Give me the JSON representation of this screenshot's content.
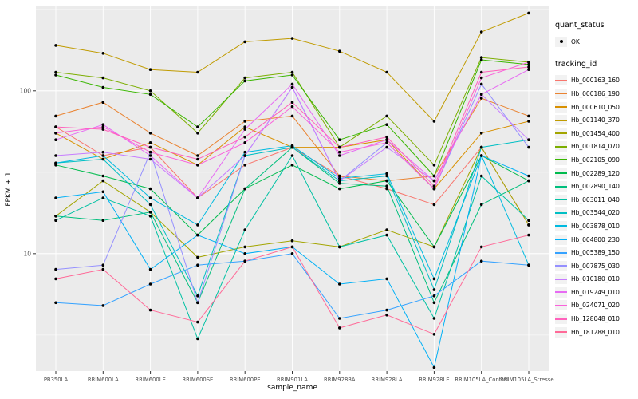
{
  "figure": {
    "background": "#FFFFFF",
    "panel_background": "#EBEBEB",
    "grid_color": "#FFFFFF",
    "tick_color": "#333333",
    "tick_label_color": "#4D4D4D"
  },
  "legend": {
    "quant_status_title": "quant_status",
    "quant_status_items": [
      {
        "label": "OK",
        "symbol": "point"
      }
    ],
    "tracking_id_title": "tracking_id"
  },
  "chart_data": {
    "type": "line",
    "title": "",
    "xlabel": "sample_name",
    "ylabel": "FPKM + 1",
    "y_scale": "log10",
    "ylim": [
      1.9,
      330
    ],
    "y_ticks": [
      10,
      100
    ],
    "y_minor_ticks": [
      3.162,
      31.62,
      316
    ],
    "grid": true,
    "legend_position": "right",
    "point_color": "#000000",
    "categories": [
      "PB350LA",
      "RRIM600LA",
      "RRIM600LE",
      "RRIM600SE",
      "RRIM600PE",
      "RRIM901LA",
      "RRIM928BA",
      "RRIM928LA",
      "RRIM928LE",
      "RRIM105LA_Control",
      "RRIM105LA_Stressed"
    ],
    "series": [
      {
        "name": "Hb_000163_160",
        "color": "#F8766D",
        "values": [
          60,
          40,
          45,
          22,
          35,
          45,
          30,
          25,
          20,
          45,
          15
        ]
      },
      {
        "name": "Hb_000186_190",
        "color": "#EA8331",
        "values": [
          70,
          85,
          55,
          40,
          65,
          70,
          30,
          28,
          30,
          90,
          70
        ]
      },
      {
        "name": "Hb_000610_050",
        "color": "#D89000",
        "values": [
          55,
          38,
          48,
          35,
          60,
          45,
          45,
          50,
          25,
          55,
          65
        ]
      },
      {
        "name": "Hb_001140_370",
        "color": "#C09B00",
        "values": [
          190,
          170,
          135,
          130,
          200,
          210,
          175,
          130,
          65,
          230,
          300
        ]
      },
      {
        "name": "Hb_001454_400",
        "color": "#A3A500",
        "values": [
          17,
          28,
          18,
          9.5,
          11,
          12,
          11,
          14,
          11,
          45,
          15
        ]
      },
      {
        "name": "Hb_001814_070",
        "color": "#7CAE00",
        "values": [
          130,
          120,
          100,
          55,
          120,
          130,
          45,
          70,
          35,
          160,
          150
        ]
      },
      {
        "name": "Hb_002105_090",
        "color": "#39B600",
        "values": [
          125,
          105,
          95,
          60,
          115,
          125,
          50,
          62,
          30,
          155,
          145
        ]
      },
      {
        "name": "Hb_002289_120",
        "color": "#00BB4E",
        "values": [
          35,
          30,
          25,
          13,
          25,
          35,
          25,
          28,
          11,
          40,
          28
        ]
      },
      {
        "name": "Hb_002890_140",
        "color": "#00BF7D",
        "values": [
          17,
          16,
          18,
          5,
          25,
          45,
          27,
          26,
          5,
          20,
          28
        ]
      },
      {
        "name": "Hb_003011_040",
        "color": "#00C1A3",
        "values": [
          16,
          22,
          17,
          3,
          14,
          40,
          11,
          13,
          4,
          30,
          16
        ]
      },
      {
        "name": "Hb_003544_020",
        "color": "#00BFC4",
        "values": [
          36,
          38,
          20,
          5.5,
          40,
          45,
          28,
          30,
          6,
          45,
          50
        ]
      },
      {
        "name": "Hb_003878_010",
        "color": "#00BAE0",
        "values": [
          36,
          40,
          22,
          15,
          42,
          46,
          29,
          31,
          7,
          40,
          8.5
        ]
      },
      {
        "name": "Hb_004800_230",
        "color": "#00B0F6",
        "values": [
          22,
          24,
          8,
          13,
          10,
          11,
          6.5,
          7,
          2,
          40,
          30
        ]
      },
      {
        "name": "Hb_005389_150",
        "color": "#35A2FF",
        "values": [
          5,
          4.8,
          6.5,
          8.5,
          9,
          10,
          4,
          4.5,
          5.5,
          9,
          8.5
        ]
      },
      {
        "name": "Hb_007875_030",
        "color": "#9590FF",
        "values": [
          8,
          8.5,
          42,
          5,
          40,
          105,
          28,
          48,
          25,
          110,
          45
        ]
      },
      {
        "name": "Hb_010180_010",
        "color": "#C77CFF",
        "values": [
          40,
          42,
          38,
          22,
          40,
          105,
          28,
          45,
          28,
          95,
          50
        ]
      },
      {
        "name": "Hb_019249_010",
        "color": "#E76BF3",
        "values": [
          50,
          62,
          40,
          22,
          58,
          110,
          40,
          50,
          28,
          95,
          135
        ]
      },
      {
        "name": "Hb_024071_020",
        "color": "#FA62DB",
        "values": [
          55,
          60,
          42,
          35,
          48,
          80,
          42,
          48,
          25,
          120,
          150
        ]
      },
      {
        "name": "Hb_128048_010",
        "color": "#FF62BC",
        "values": [
          60,
          58,
          45,
          38,
          52,
          85,
          45,
          52,
          26,
          130,
          140
        ]
      },
      {
        "name": "Hb_181288_010",
        "color": "#FF6A98",
        "values": [
          7,
          8,
          4.5,
          3.8,
          9,
          11,
          3.5,
          4.2,
          3.2,
          11,
          13
        ]
      }
    ]
  }
}
